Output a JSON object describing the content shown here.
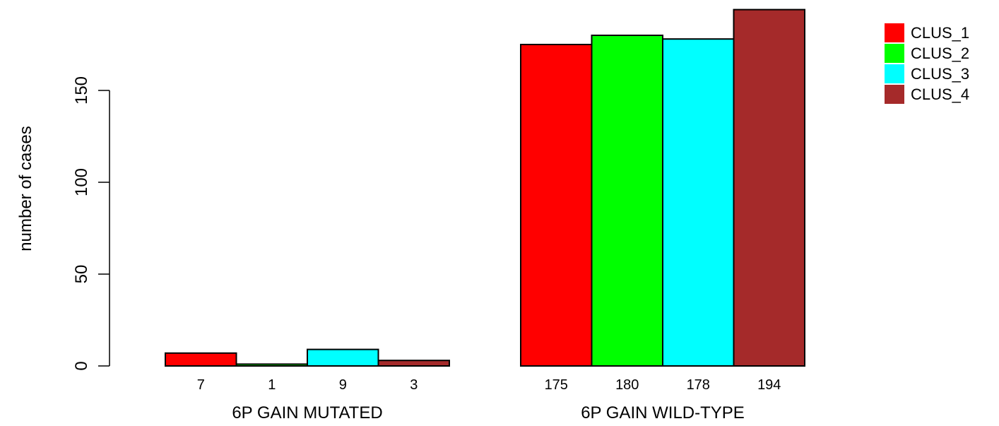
{
  "chart_data": {
    "type": "bar",
    "title": "",
    "xlabel": "",
    "ylabel": "number of cases",
    "ylim": [
      0,
      200
    ],
    "yticks": [
      0,
      50,
      100,
      150
    ],
    "grid": false,
    "legend_position": "top-right",
    "groups": [
      {
        "label": "6P GAIN MUTATED",
        "values": [
          7,
          1,
          9,
          3
        ],
        "value_labels": [
          "7",
          "1",
          "9",
          "3"
        ]
      },
      {
        "label": "6P GAIN WILD-TYPE",
        "values": [
          175,
          180,
          178,
          194
        ],
        "value_labels": [
          "175",
          "180",
          "178",
          "194"
        ]
      }
    ],
    "series": [
      {
        "name": "CLUS_1",
        "color": "#ff0000"
      },
      {
        "name": "CLUS_2",
        "color": "#00ff00"
      },
      {
        "name": "CLUS_3",
        "color": "#00ffff"
      },
      {
        "name": "CLUS_4",
        "color": "#a52a2a"
      }
    ]
  }
}
